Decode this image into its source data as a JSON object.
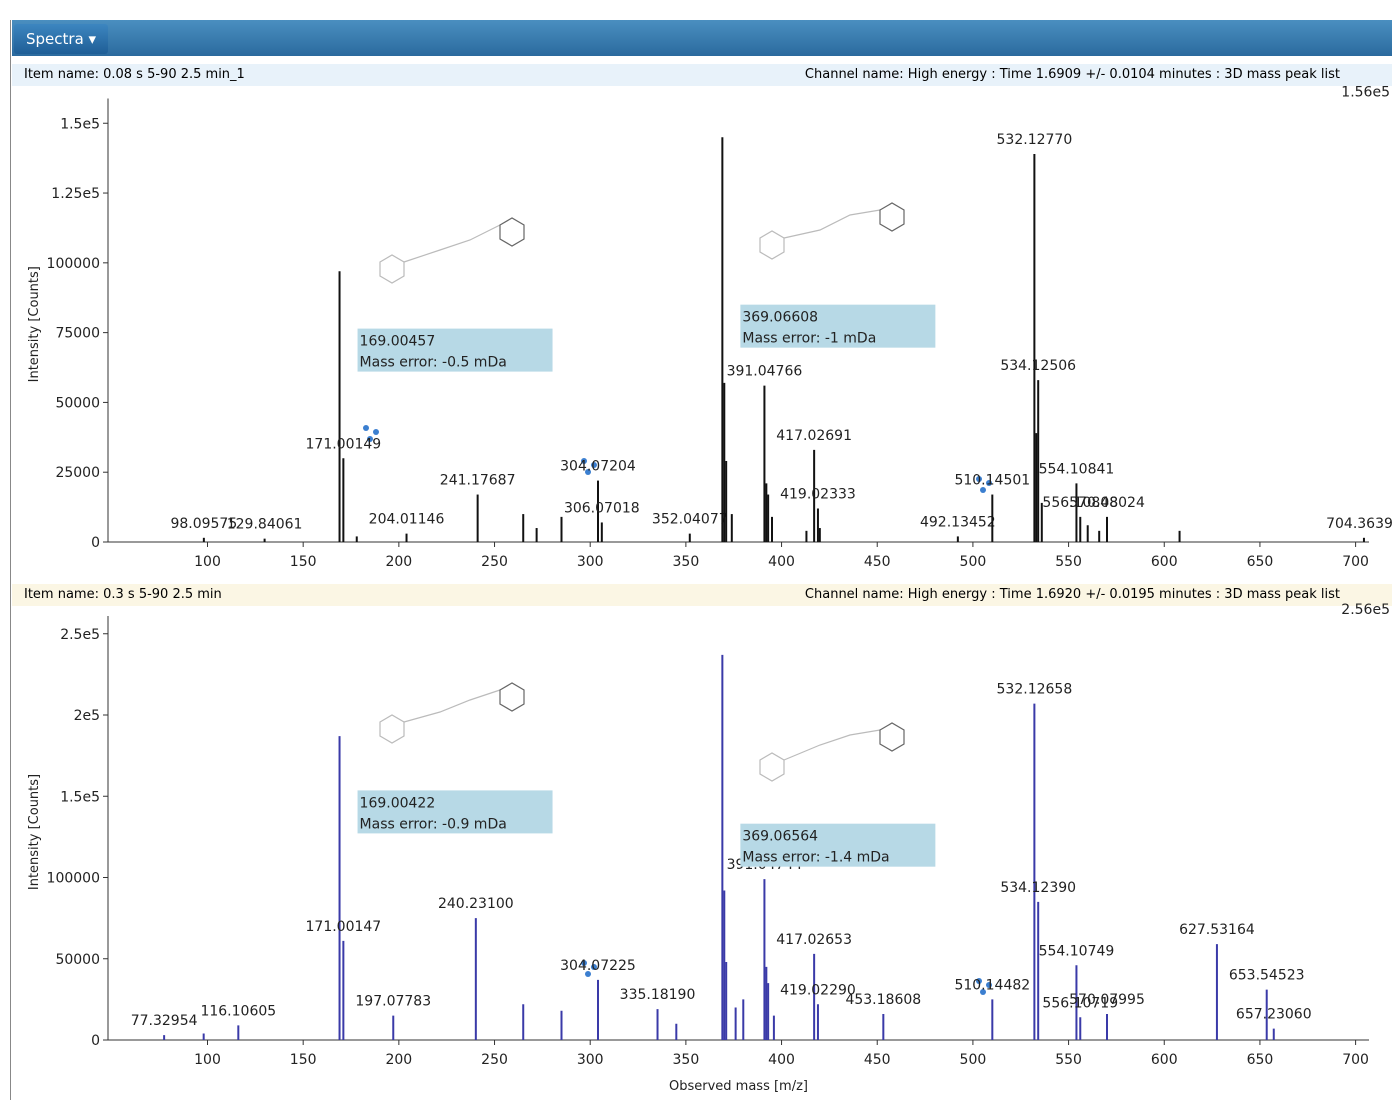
{
  "window": {
    "title": "Spectra"
  },
  "chart_data": [
    {
      "type": "spectrum",
      "item_name": "Item name: 0.08 s 5-90 2.5 min_1",
      "channel_name": "Channel name: High energy : Time 1.6909 +/- 0.0104 minutes : 3D mass peak list",
      "scale_label": "1.56e5",
      "y_label": "Intensity [Counts]",
      "color": "#111111",
      "xlim": [
        48,
        707
      ],
      "xticks": [
        100,
        150,
        200,
        250,
        300,
        350,
        400,
        450,
        500,
        550,
        600,
        650,
        700
      ],
      "ylim": [
        0,
        156000
      ],
      "yticks": [
        0,
        25000,
        50000,
        75000,
        100000,
        {
          "value": 125000,
          "label": "1.25e5"
        },
        {
          "value": 150000,
          "label": "1.5e5"
        }
      ],
      "x": [
        98.09575,
        129.84061,
        169.00457,
        171.00149,
        178,
        204.01146,
        241.17687,
        265,
        272,
        285,
        304.07204,
        306.07018,
        352.04077,
        369.06608,
        370.07,
        371.06,
        374,
        391.04766,
        392.05,
        393,
        395,
        413,
        417.02691,
        419.02333,
        420,
        492.13452,
        510.14501,
        532.1277,
        533.13,
        534.12506,
        536,
        554.10841,
        556.10848,
        560,
        566,
        570.08024,
        608,
        704.36393
      ],
      "values": [
        1500,
        1200,
        97000,
        30000,
        2000,
        3000,
        17000,
        10000,
        5000,
        9000,
        22000,
        7000,
        3000,
        145000,
        57000,
        29000,
        10000,
        56000,
        21000,
        17000,
        9000,
        4000,
        33000,
        12000,
        5000,
        2000,
        17000,
        139000,
        39000,
        58000,
        14000,
        21000,
        9000,
        6000,
        4000,
        9000,
        4000,
        1500
      ],
      "peak_labels": [
        "98.09575",
        "129.84061",
        null,
        "171.00149",
        null,
        "204.01146",
        "241.17687",
        null,
        null,
        null,
        "304.07204",
        "306.07018",
        "352.04077",
        null,
        null,
        null,
        null,
        "391.04766",
        null,
        null,
        null,
        null,
        "417.02691",
        "419.02333",
        null,
        "492.13452",
        "510.14501",
        "532.12770",
        null,
        "534.12506",
        null,
        "554.10841",
        "556.10848",
        null,
        null,
        "570.08024",
        null,
        "704.36393"
      ],
      "annotations": [
        {
          "x": 169.00457,
          "lines": [
            "169.00457",
            "Mass error: -0.5 mDa"
          ]
        },
        {
          "x": 369.06608,
          "lines": [
            "369.06608",
            "Mass error: -1 mDa"
          ]
        }
      ]
    },
    {
      "type": "spectrum",
      "item_name": "Item name: 0.3 s 5-90 2.5 min",
      "channel_name": "Channel name: High energy : Time 1.6920 +/- 0.0195 minutes : 3D mass peak list",
      "scale_label": "2.56e5",
      "y_label": "Intensity [Counts]",
      "x_label": "Observed mass [m/z]",
      "color": "#3a3aa8",
      "xlim": [
        48,
        707
      ],
      "xticks": [
        100,
        150,
        200,
        250,
        300,
        350,
        400,
        450,
        500,
        550,
        600,
        650,
        700
      ],
      "ylim": [
        0,
        256000
      ],
      "yticks": [
        0,
        50000,
        100000,
        {
          "value": 150000,
          "label": "1.5e5"
        },
        {
          "value": 200000,
          "label": "2e5"
        },
        {
          "value": 250000,
          "label": "2.5e5"
        }
      ],
      "x": [
        77.32954,
        98,
        116.10605,
        169.00422,
        171.00147,
        197.07783,
        240.231,
        265,
        285,
        304.07225,
        335.1819,
        345,
        369.06564,
        370.07,
        371.07,
        376,
        380,
        391.04744,
        392.05,
        393,
        396,
        417.02653,
        419.0229,
        453.18608,
        510.14482,
        532.12658,
        534.1239,
        554.10749,
        556.10719,
        570.07995,
        627.53164,
        653.54523,
        657.2306
      ],
      "values": [
        3000,
        4000,
        9000,
        187000,
        61000,
        15000,
        75000,
        22000,
        18000,
        37000,
        19000,
        10000,
        237000,
        92000,
        48000,
        20000,
        25000,
        99000,
        45000,
        35000,
        15000,
        53000,
        22000,
        16000,
        25000,
        207000,
        85000,
        46000,
        14000,
        16000,
        59000,
        31000,
        7000
      ],
      "peak_labels": [
        "77.32954",
        null,
        "116.10605",
        null,
        "171.00147",
        "197.07783",
        "240.23100",
        null,
        null,
        "304.07225",
        "335.18190",
        null,
        null,
        null,
        null,
        null,
        null,
        "391.04744",
        null,
        null,
        null,
        "417.02653",
        "419.02290",
        "453.18608",
        "510.14482",
        "532.12658",
        "534.12390",
        "554.10749",
        "556.10719",
        "570.07995",
        "627.53164",
        "653.54523",
        "657.23060"
      ],
      "annotations": [
        {
          "x": 169.00422,
          "lines": [
            "169.00422",
            "Mass error: -0.9 mDa"
          ]
        },
        {
          "x": 369.06564,
          "lines": [
            "369.06564",
            "Mass error: -1.4 mDa"
          ]
        }
      ]
    }
  ]
}
